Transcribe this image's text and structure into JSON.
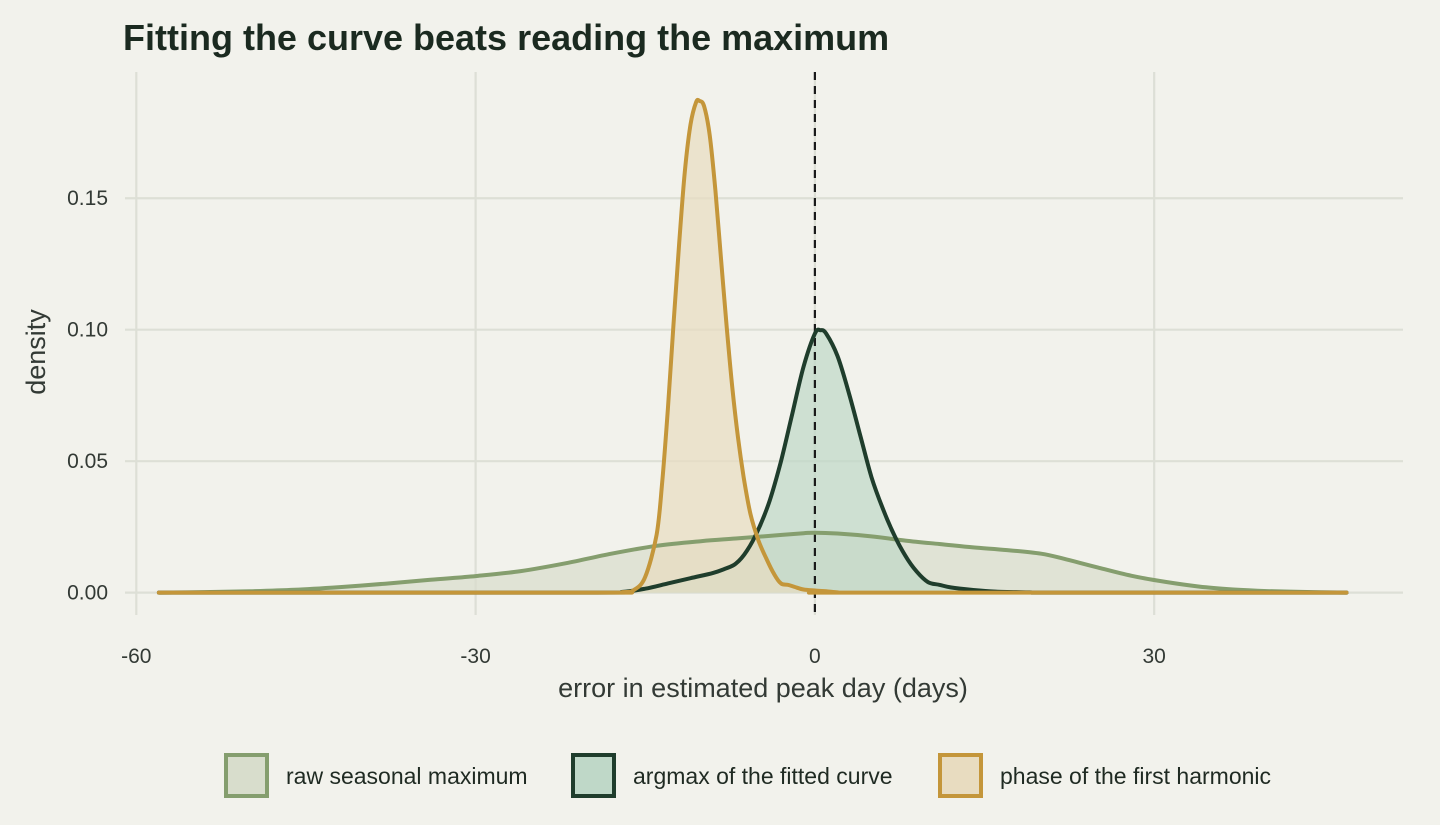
{
  "chart_data": {
    "type": "area",
    "title": "Fitting the curve beats reading the maximum",
    "xlabel": "error in estimated peak day (days)",
    "ylabel": "density",
    "xlim": [
      -61,
      52
    ],
    "ylim": [
      -0.0085,
      0.198
    ],
    "x_ticks": [
      -60,
      -30,
      0,
      30
    ],
    "x_tick_labels": [
      "-60",
      "-30",
      "0",
      "30"
    ],
    "y_ticks": [
      0,
      0.05,
      0.1,
      0.15
    ],
    "y_tick_labels": [
      "0.00",
      "0.05",
      "0.10",
      "0.15"
    ],
    "grid": true,
    "reference_line": {
      "x": 0,
      "style": "dashed",
      "color": "#1a1a1a"
    },
    "legend_position": "bottom",
    "series": [
      {
        "name": "raw seasonal maximum",
        "line_color": "#859e6e",
        "fill_color": "#d8ddcc",
        "points": [
          [
            -58,
            0
          ],
          [
            -54,
            0.0002
          ],
          [
            -50,
            0.0005
          ],
          [
            -46,
            0.0011
          ],
          [
            -42,
            0.0021
          ],
          [
            -38,
            0.0034
          ],
          [
            -34,
            0.0049
          ],
          [
            -30,
            0.0063
          ],
          [
            -26,
            0.0082
          ],
          [
            -22,
            0.0112
          ],
          [
            -18,
            0.0148
          ],
          [
            -14,
            0.0178
          ],
          [
            -10,
            0.0196
          ],
          [
            -7,
            0.0206
          ],
          [
            -4,
            0.0216
          ],
          [
            -1,
            0.0226
          ],
          [
            0,
            0.0228
          ],
          [
            2,
            0.0225
          ],
          [
            5,
            0.0214
          ],
          [
            8,
            0.0198
          ],
          [
            11,
            0.0185
          ],
          [
            14,
            0.0172
          ],
          [
            17,
            0.0162
          ],
          [
            20,
            0.0148
          ],
          [
            22,
            0.0129
          ],
          [
            25,
            0.0096
          ],
          [
            28,
            0.0064
          ],
          [
            31,
            0.0041
          ],
          [
            34,
            0.0023
          ],
          [
            37,
            0.0012
          ],
          [
            40,
            0.0006
          ],
          [
            44,
            0.0002
          ],
          [
            47,
            0
          ]
        ]
      },
      {
        "name": "argmax of the fitted curve",
        "line_color": "#1f3d2c",
        "fill_color": "#bfd8c8",
        "points": [
          [
            -58,
            0
          ],
          [
            -20,
            0
          ],
          [
            -17,
            0.0003
          ],
          [
            -15,
            0.0015
          ],
          [
            -13,
            0.0035
          ],
          [
            -11,
            0.0055
          ],
          [
            -9,
            0.0075
          ],
          [
            -8,
            0.009
          ],
          [
            -7,
            0.011
          ],
          [
            -6,
            0.016
          ],
          [
            -5,
            0.024
          ],
          [
            -4,
            0.035
          ],
          [
            -3,
            0.05
          ],
          [
            -2,
            0.068
          ],
          [
            -1,
            0.086
          ],
          [
            0,
            0.0985
          ],
          [
            0.5,
            0.0998
          ],
          [
            1,
            0.0985
          ],
          [
            2,
            0.09
          ],
          [
            3,
            0.076
          ],
          [
            4,
            0.06
          ],
          [
            5,
            0.044
          ],
          [
            6,
            0.032
          ],
          [
            7,
            0.022
          ],
          [
            8,
            0.014
          ],
          [
            9,
            0.008
          ],
          [
            10,
            0.004
          ],
          [
            11,
            0.003
          ],
          [
            12,
            0.002
          ],
          [
            14,
            0.001
          ],
          [
            16,
            0.0004
          ],
          [
            19,
            0.0001
          ],
          [
            22,
            0
          ],
          [
            47,
            0
          ]
        ]
      },
      {
        "name": "phase of the first harmonic",
        "line_color": "#c4963a",
        "fill_color": "#e8dcc0",
        "points": [
          [
            -58,
            0
          ],
          [
            -20,
            0
          ],
          [
            -17,
            0.0002
          ],
          [
            -16,
            0.001
          ],
          [
            -15,
            0.006
          ],
          [
            -14,
            0.022
          ],
          [
            -13.5,
            0.042
          ],
          [
            -13,
            0.07
          ],
          [
            -12.5,
            0.102
          ],
          [
            -12,
            0.133
          ],
          [
            -11.5,
            0.16
          ],
          [
            -11,
            0.178
          ],
          [
            -10.5,
            0.1865
          ],
          [
            -10.2,
            0.187
          ],
          [
            -9.8,
            0.185
          ],
          [
            -9.3,
            0.174
          ],
          [
            -8.8,
            0.153
          ],
          [
            -8.3,
            0.127
          ],
          [
            -7.8,
            0.101
          ],
          [
            -7.3,
            0.078
          ],
          [
            -6.8,
            0.059
          ],
          [
            -6.3,
            0.044
          ],
          [
            -5.7,
            0.03
          ],
          [
            -5,
            0.02
          ],
          [
            -4.3,
            0.013
          ],
          [
            -3.6,
            0.007
          ],
          [
            -3,
            0.0035
          ],
          [
            -2.4,
            0.003
          ],
          [
            -1.8,
            0.0022
          ],
          [
            -1,
            0.0012
          ],
          [
            0,
            0.0008
          ],
          [
            1,
            0.0005
          ],
          [
            2,
            0.0001
          ],
          [
            3,
            0
          ],
          [
            47,
            0
          ]
        ]
      }
    ]
  }
}
